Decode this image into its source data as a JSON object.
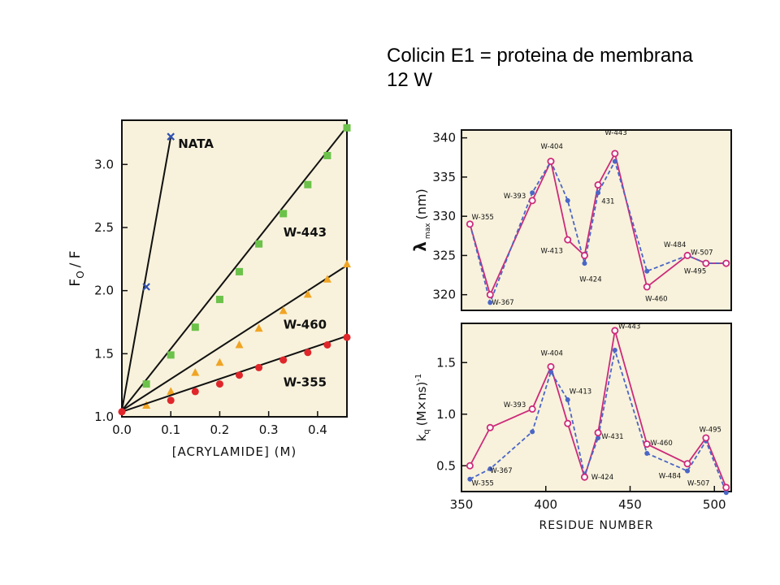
{
  "slide": {
    "title_line1": "Colicin E1 = proteina de membrana",
    "title_line2": "12 W"
  },
  "colors": {
    "panel_bg": "#f8f2dc",
    "ink": "#111111",
    "nata": "#2f50b0",
    "w443": "#6cc24a",
    "w460": "#f0a424",
    "w355": "#e0262a",
    "magenta": "#cc2a7a",
    "blue": "#4a66c6"
  },
  "chart_data": [
    {
      "id": "stern-volmer",
      "type": "line",
      "xlabel": "[ACRYLAMIDE] (M)",
      "ylabel_main": "F",
      "ylabel_sub": "O",
      "ylabel_rest": "/ F",
      "xlim": [
        0.0,
        0.46
      ],
      "ylim": [
        1.0,
        3.35
      ],
      "xticks": [
        0.0,
        0.1,
        0.2,
        0.3,
        0.4
      ],
      "xtick_labels": [
        "0.0",
        "0.1",
        "0.2",
        "0.3",
        "0.4"
      ],
      "yticks": [
        1.0,
        1.5,
        2.0,
        2.5,
        3.0
      ],
      "ytick_labels": [
        "1.0",
        "1.5",
        "2.0",
        "2.5",
        "3.0"
      ],
      "series": [
        {
          "name": "NATA",
          "marker": "x",
          "color_key": "nata",
          "line": [
            [
              0.0,
              1.05
            ],
            [
              0.1,
              3.22
            ]
          ],
          "points": [
            [
              0.05,
              2.03
            ],
            [
              0.1,
              3.22
            ]
          ],
          "label_at": [
            0.115,
            3.13
          ]
        },
        {
          "name": "W-443",
          "marker": "square",
          "color_key": "w443",
          "line": [
            [
              0.0,
              1.05
            ],
            [
              0.46,
              3.3
            ]
          ],
          "points": [
            [
              0.05,
              1.26
            ],
            [
              0.1,
              1.49
            ],
            [
              0.15,
              1.71
            ],
            [
              0.2,
              1.93
            ],
            [
              0.24,
              2.15
            ],
            [
              0.28,
              2.37
            ],
            [
              0.33,
              2.61
            ],
            [
              0.38,
              2.84
            ],
            [
              0.42,
              3.07
            ],
            [
              0.46,
              3.29
            ]
          ],
          "label_at": [
            0.33,
            2.43
          ]
        },
        {
          "name": "W-460",
          "marker": "triangle",
          "color_key": "w460",
          "line": [
            [
              0.0,
              1.05
            ],
            [
              0.46,
              2.2
            ]
          ],
          "points": [
            [
              0.05,
              1.09
            ],
            [
              0.1,
              1.2
            ],
            [
              0.15,
              1.35
            ],
            [
              0.2,
              1.43
            ],
            [
              0.24,
              1.57
            ],
            [
              0.28,
              1.7
            ],
            [
              0.33,
              1.84
            ],
            [
              0.38,
              1.97
            ],
            [
              0.42,
              2.09
            ],
            [
              0.46,
              2.21
            ]
          ],
          "label_at": [
            0.33,
            1.7
          ]
        },
        {
          "name": "W-355",
          "marker": "circle",
          "color_key": "w355",
          "line": [
            [
              0.0,
              1.04
            ],
            [
              0.46,
              1.64
            ]
          ],
          "points": [
            [
              0.0,
              1.04
            ],
            [
              0.1,
              1.13
            ],
            [
              0.15,
              1.2
            ],
            [
              0.2,
              1.26
            ],
            [
              0.24,
              1.33
            ],
            [
              0.28,
              1.39
            ],
            [
              0.33,
              1.45
            ],
            [
              0.38,
              1.51
            ],
            [
              0.42,
              1.57
            ],
            [
              0.46,
              1.63
            ]
          ],
          "label_at": [
            0.33,
            1.24
          ]
        }
      ]
    },
    {
      "id": "lambda-max",
      "type": "line",
      "ylabel": "λ max (nm)",
      "ylabel_main": "λ",
      "ylabel_sub": "max",
      "ylabel_rest": "(nm)",
      "xlim": [
        350,
        510
      ],
      "ylim": [
        318,
        341
      ],
      "yticks": [
        320,
        325,
        330,
        335,
        340
      ],
      "ytick_labels": [
        "320",
        "325",
        "330",
        "335",
        "340"
      ],
      "series": [
        {
          "name": "magenta",
          "style": "solid",
          "marker": "open-circle",
          "color_key": "magenta",
          "x": [
            355,
            367,
            392,
            403,
            413,
            423,
            431,
            441,
            460,
            484,
            495,
            507
          ],
          "y": [
            329,
            320,
            332,
            337,
            327,
            325,
            334,
            338,
            321,
            325,
            324,
            324
          ]
        },
        {
          "name": "blue",
          "style": "dashed",
          "marker": "dot",
          "color_key": "blue",
          "x": [
            355,
            367,
            392,
            403,
            413,
            423,
            431,
            441,
            460,
            484,
            495,
            507
          ],
          "y": [
            329,
            319,
            333,
            337,
            332,
            324,
            333,
            337,
            323,
            325,
            324,
            324
          ]
        }
      ],
      "annotations": [
        {
          "text": "W-355",
          "x": 356,
          "y": 329.6
        },
        {
          "text": "W-367",
          "x": 368,
          "y": 318.7
        },
        {
          "text": "W-393",
          "x": 375,
          "y": 332.3
        },
        {
          "text": "W-404",
          "x": 397,
          "y": 338.6
        },
        {
          "text": "W-413",
          "x": 397,
          "y": 325.3
        },
        {
          "text": "W-424",
          "x": 420,
          "y": 321.7
        },
        {
          "text": "431",
          "x": 433,
          "y": 331.6
        },
        {
          "text": "W-443",
          "x": 435,
          "y": 340.4
        },
        {
          "text": "W-484",
          "x": 470,
          "y": 326.1
        },
        {
          "text": "W-507",
          "x": 486,
          "y": 325.1
        },
        {
          "text": "W-495",
          "x": 482,
          "y": 322.7
        },
        {
          "text": "W-460",
          "x": 459,
          "y": 319.2
        }
      ]
    },
    {
      "id": "kq",
      "type": "line",
      "xlabel": "RESIDUE NUMBER",
      "ylabel_main": "k",
      "ylabel_sub": "q",
      "ylabel_rest": "(M×ns)",
      "ylabel_sup": "-1",
      "xlim": [
        350,
        510
      ],
      "ylim": [
        0.25,
        1.88
      ],
      "xticks": [
        350,
        400,
        450,
        500
      ],
      "xtick_labels": [
        "350",
        "400",
        "450",
        "500"
      ],
      "yticks": [
        0.5,
        1.0,
        1.5
      ],
      "ytick_labels": [
        "0.5",
        "1.0",
        "1.5"
      ],
      "series": [
        {
          "name": "magenta",
          "style": "solid",
          "marker": "open-circle",
          "color_key": "magenta",
          "x": [
            355,
            367,
            392,
            403,
            413,
            423,
            431,
            441,
            460,
            484,
            495,
            507
          ],
          "y": [
            0.5,
            0.87,
            1.05,
            1.46,
            0.91,
            0.39,
            0.82,
            1.81,
            0.71,
            0.52,
            0.77,
            0.29
          ]
        },
        {
          "name": "blue",
          "style": "dashed",
          "marker": "dot",
          "color_key": "blue",
          "x": [
            355,
            367,
            392,
            403,
            413,
            423,
            431,
            441,
            460,
            484,
            495,
            507
          ],
          "y": [
            0.37,
            0.47,
            0.83,
            1.41,
            1.14,
            0.41,
            0.77,
            1.62,
            0.62,
            0.45,
            0.74,
            0.24
          ]
        }
      ],
      "annotations": [
        {
          "text": "W-355",
          "x": 356,
          "y": 0.31
        },
        {
          "text": "W-367",
          "x": 367,
          "y": 0.43
        },
        {
          "text": "W-393",
          "x": 375,
          "y": 1.07
        },
        {
          "text": "W-404",
          "x": 397,
          "y": 1.57
        },
        {
          "text": "W-413",
          "x": 414,
          "y": 1.2
        },
        {
          "text": "W-424",
          "x": 427,
          "y": 0.37
        },
        {
          "text": "W-431",
          "x": 433,
          "y": 0.76
        },
        {
          "text": "W-443",
          "x": 443,
          "y": 1.83
        },
        {
          "text": "W-460",
          "x": 462,
          "y": 0.7
        },
        {
          "text": "W-484",
          "x": 467,
          "y": 0.38
        },
        {
          "text": "W-507",
          "x": 484,
          "y": 0.31
        },
        {
          "text": "W-495",
          "x": 491,
          "y": 0.83
        }
      ]
    }
  ]
}
